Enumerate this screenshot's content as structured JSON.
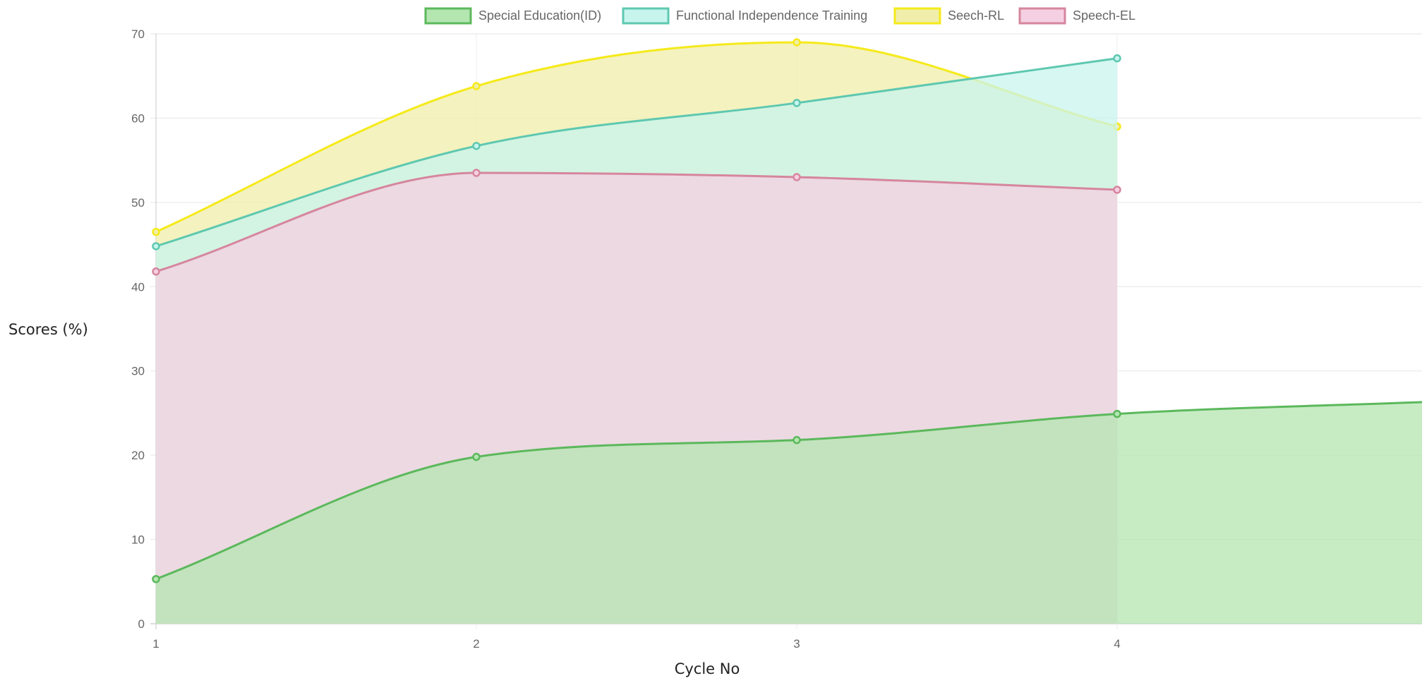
{
  "chart_data": {
    "type": "area",
    "x": [
      1,
      2,
      3,
      4
    ],
    "x_tick_labels": [
      "1",
      "2",
      "3",
      "4"
    ],
    "y_ticks": [
      0,
      10,
      20,
      30,
      40,
      50,
      60,
      70
    ],
    "ylim": [
      0,
      70
    ],
    "xlabel": "Cycle No",
    "ylabel": "Scores (%)",
    "legend_position": "top-center",
    "grid": true,
    "series": [
      {
        "name": "Special Education(ID)",
        "values": [
          5.3,
          19.8,
          21.8,
          24.9
        ],
        "trailing_value": 26.3,
        "stroke": "#5cb85c",
        "fill": "#b4e6b0"
      },
      {
        "name": "Functional Independence Training",
        "values": [
          44.8,
          56.7,
          61.8,
          67.1
        ],
        "stroke": "#5ec8b0",
        "fill": "#c8f4ee"
      },
      {
        "name": "Seech-RL",
        "values": [
          46.5,
          63.8,
          69.0,
          59.0
        ],
        "stroke": "#f5ea1a",
        "fill": "#f0eeaa"
      },
      {
        "name": "Speech-EL",
        "values": [
          41.8,
          53.5,
          53.0,
          51.5
        ],
        "stroke": "#d6869e",
        "fill": "#f4d0e2"
      }
    ]
  }
}
